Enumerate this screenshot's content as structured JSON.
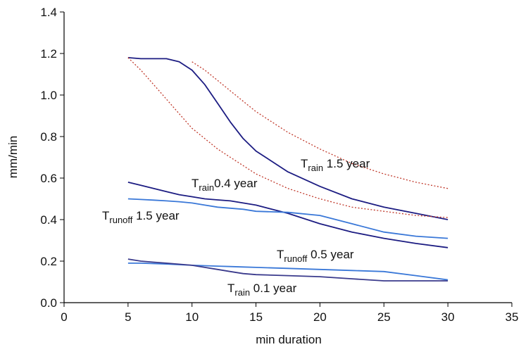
{
  "chart_data": {
    "type": "line",
    "xlabel": "min duration",
    "ylabel": "mm/min",
    "xlim": [
      0,
      35
    ],
    "xticks": [
      0,
      5,
      10,
      15,
      20,
      25,
      30,
      35
    ],
    "ylim": [
      0,
      1.4
    ],
    "yticks": [
      {
        "value": 0,
        "label": "0.0"
      },
      0.2,
      0.4,
      0.6,
      0.8,
      {
        "value": 1,
        "label": "1.0"
      },
      1.2,
      1.4
    ],
    "x": [
      5,
      6,
      7,
      8,
      9,
      10,
      11,
      12,
      13,
      14,
      15,
      17.5,
      20,
      22.5,
      25,
      27.5,
      30
    ],
    "series": [
      {
        "color": "#1c1c82",
        "style": "solid",
        "values": [
          1.18,
          1.175,
          1.175,
          1.175,
          1.16,
          1.12,
          1.05,
          0.96,
          0.87,
          0.79,
          0.73,
          0.63,
          0.56,
          0.5,
          0.46,
          0.43,
          0.4
        ]
      },
      {
        "color": "#c0392b",
        "style": "dotted",
        "values": [
          null,
          null,
          null,
          null,
          null,
          1.16,
          1.12,
          1.07,
          1.02,
          0.97,
          0.92,
          0.82,
          0.74,
          0.67,
          0.62,
          0.58,
          0.55
        ]
      },
      {
        "color": "#c0392b",
        "style": "dotted",
        "values": [
          1.18,
          1.12,
          1.05,
          0.98,
          0.91,
          0.84,
          0.79,
          0.74,
          0.7,
          0.66,
          0.62,
          0.55,
          0.5,
          0.46,
          0.44,
          0.42,
          0.41
        ]
      },
      {
        "color": "#1c1c82",
        "style": "solid",
        "values": [
          0.58,
          0.565,
          0.55,
          0.535,
          0.52,
          0.51,
          0.5,
          0.495,
          0.49,
          0.48,
          0.47,
          0.43,
          0.38,
          0.34,
          0.31,
          0.285,
          0.265
        ]
      },
      {
        "color": "#3a78d8",
        "style": "solid",
        "values": [
          0.5,
          0.497,
          0.494,
          0.49,
          0.486,
          0.48,
          0.47,
          0.46,
          0.455,
          0.45,
          0.44,
          0.435,
          0.42,
          0.38,
          0.34,
          0.32,
          0.31
        ]
      },
      {
        "color": "#3a78d8",
        "style": "solid",
        "values": [
          0.19,
          0.19,
          0.188,
          0.186,
          0.183,
          0.18,
          0.178,
          0.176,
          0.174,
          0.172,
          0.17,
          0.165,
          0.16,
          0.155,
          0.15,
          0.13,
          0.11
        ]
      },
      {
        "color": "#3a3a8c",
        "style": "solid",
        "values": [
          0.21,
          0.2,
          0.195,
          0.19,
          0.185,
          0.18,
          0.17,
          0.16,
          0.15,
          0.14,
          0.135,
          0.13,
          0.125,
          0.115,
          0.105,
          0.105,
          0.105
        ]
      }
    ],
    "annotations": [
      {
        "base": "T",
        "sub": "rain",
        "text": " 1.5 year"
      },
      {
        "base": "T",
        "sub": "rain",
        "text": "0.4 year"
      },
      {
        "base": "T",
        "sub": "runoff",
        "text": " 1.5 year"
      },
      {
        "base": "T",
        "sub": "runoff",
        "text": " 0.5 year"
      },
      {
        "base": "T",
        "sub": "rain",
        "text": " 0.1 year"
      }
    ]
  }
}
